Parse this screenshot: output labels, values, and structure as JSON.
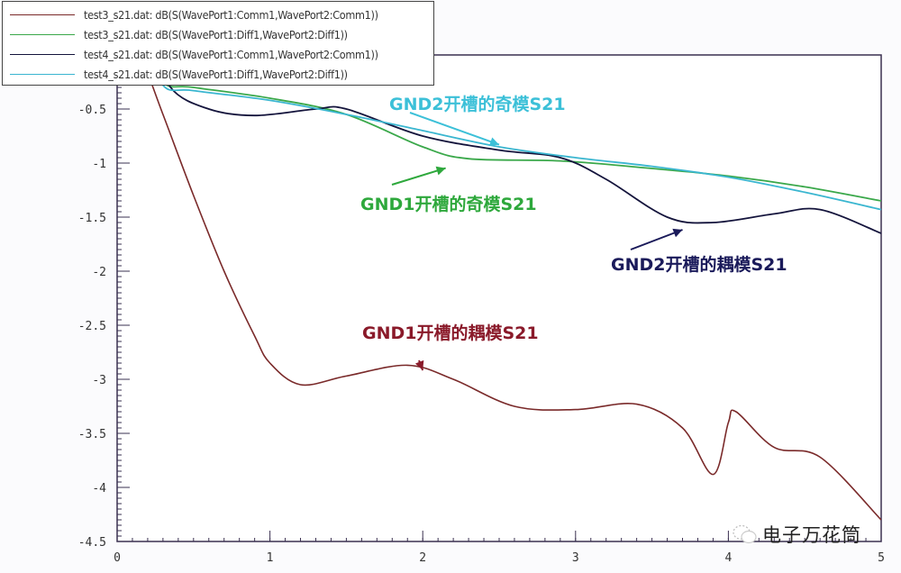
{
  "chart_data": {
    "type": "line",
    "title": "",
    "xlabel": "",
    "ylabel": "",
    "xlim": [
      0,
      5
    ],
    "ylim": [
      -4.5,
      0
    ],
    "grid": false,
    "legend_position": "top-left",
    "x_ticks": [
      "0",
      "1",
      "2",
      "3",
      "4",
      "5"
    ],
    "y_ticks": [
      "-0.5",
      "-1",
      "-1.5",
      "-2",
      "-2.5",
      "-3",
      "-3.5",
      "-4",
      "-4.5"
    ],
    "series": [
      {
        "name": "test3_s21.dat: dB(S(WavePort1:Comm1,WavePort2:Comm1))",
        "color": "#7a2a2a",
        "x": [
          0.15,
          0.3,
          0.5,
          0.7,
          0.9,
          1.0,
          1.2,
          1.5,
          1.9,
          2.2,
          2.6,
          3.0,
          3.4,
          3.7,
          3.9,
          4.0,
          4.05,
          4.3,
          4.6,
          5.0
        ],
        "y": [
          0.0,
          -0.55,
          -1.3,
          -2.0,
          -2.6,
          -2.85,
          -3.05,
          -2.97,
          -2.87,
          -3.0,
          -3.25,
          -3.28,
          -3.23,
          -3.45,
          -3.88,
          -3.4,
          -3.3,
          -3.63,
          -3.72,
          -4.3
        ]
      },
      {
        "name": "test3_s21.dat: dB(S(WavePort1:Diff1,WavePort2:Diff1))",
        "color": "#3aa84a",
        "x": [
          0.3,
          0.5,
          1.0,
          1.5,
          2.0,
          2.3,
          2.9,
          3.5,
          4.0,
          4.5,
          5.0
        ],
        "y": [
          -0.25,
          -0.3,
          -0.4,
          -0.55,
          -0.85,
          -0.96,
          -0.98,
          -1.05,
          -1.12,
          -1.22,
          -1.35
        ]
      },
      {
        "name": "test4_s21.dat: dB(S(WavePort1:Comm1,WavePort2:Comm1))",
        "color": "#14143c",
        "x": [
          0.35,
          0.6,
          0.9,
          1.3,
          1.5,
          2.0,
          2.5,
          2.9,
          3.2,
          3.6,
          3.9,
          4.3,
          4.6,
          5.0
        ],
        "y": [
          -0.3,
          -0.5,
          -0.56,
          -0.5,
          -0.5,
          -0.75,
          -0.88,
          -0.95,
          -1.15,
          -1.5,
          -1.55,
          -1.47,
          -1.43,
          -1.65
        ]
      },
      {
        "name": "test4_s21.dat: dB(S(WavePort1:Diff1,WavePort2:Diff1))",
        "color": "#3ab6d0",
        "x": [
          0.3,
          0.5,
          1.0,
          1.5,
          2.0,
          2.5,
          3.0,
          3.5,
          4.0,
          4.5,
          5.0
        ],
        "y": [
          -0.28,
          -0.33,
          -0.42,
          -0.55,
          -0.7,
          -0.85,
          -0.95,
          -1.03,
          -1.13,
          -1.27,
          -1.43
        ]
      }
    ],
    "annotations": [
      {
        "text": "GND2开槽的奇模S21",
        "color": "#3cc0d8",
        "x": 2.3,
        "y": -0.4,
        "arrow_to": [
          2.5,
          -0.88
        ]
      },
      {
        "text": "GND1开槽的奇模S21",
        "color": "#2ea83c",
        "x": 1.6,
        "y": -1.35,
        "arrow_to": [
          2.15,
          -0.98
        ]
      },
      {
        "text": "GND2开槽的耦模S21",
        "color": "#1a1a5a",
        "x": 3.2,
        "y": -1.9,
        "arrow_to": [
          3.7,
          -1.55
        ]
      },
      {
        "text": "GND1开槽的耦模S21",
        "color": "#8a1a2a",
        "x": 1.6,
        "y": -2.55,
        "arrow_to": [
          2.0,
          -2.85
        ]
      }
    ]
  },
  "legend": {
    "items": [
      {
        "label": "test3_s21.dat: dB(S(WavePort1:Comm1,WavePort2:Comm1))",
        "color": "#7a2a2a"
      },
      {
        "label": "test3_s21.dat: dB(S(WavePort1:Diff1,WavePort2:Diff1))",
        "color": "#3aa84a"
      },
      {
        "label": "test4_s21.dat: dB(S(WavePort1:Comm1,WavePort2:Comm1))",
        "color": "#14143c"
      },
      {
        "label": "test4_s21.dat: dB(S(WavePort1:Diff1,WavePort2:Diff1))",
        "color": "#3ab6d0"
      }
    ]
  },
  "annotations_text": {
    "gnd2_odd": "GND2开槽的奇模S21",
    "gnd1_odd": "GND1开槽的奇模S21",
    "gnd2_comm": "GND2开槽的耦模S21",
    "gnd1_comm": "GND1开槽的耦模S21"
  },
  "watermark": {
    "text": "电子万花筒",
    "icon": "wechat-icon"
  }
}
